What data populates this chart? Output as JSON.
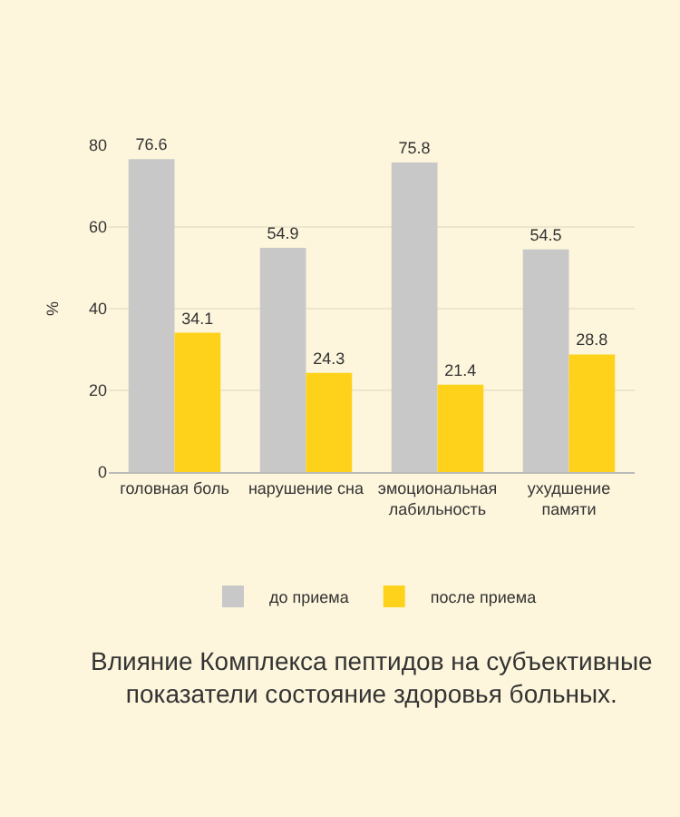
{
  "chart_data": {
    "type": "bar",
    "ylabel": "%",
    "categories": [
      "головная боль",
      "нарушение сна",
      "эмоциональная лабильность",
      "ухудшение памяти"
    ],
    "series": [
      {
        "name": "до приема",
        "color": "#c8c8c8",
        "values": [
          76.6,
          54.9,
          75.8,
          54.5
        ]
      },
      {
        "name": "после приема",
        "color": "#fed21a",
        "values": [
          34.1,
          24.3,
          21.4,
          28.8
        ]
      }
    ],
    "ylim": [
      0,
      80
    ],
    "yticks": [
      0,
      20,
      40,
      60,
      80
    ],
    "grid": "y",
    "legend": "bottom",
    "data_labels": true,
    "annotations": [
      "Влияние Комплекса пептидов на субъективные показатели состояние здоровья больных."
    ]
  }
}
